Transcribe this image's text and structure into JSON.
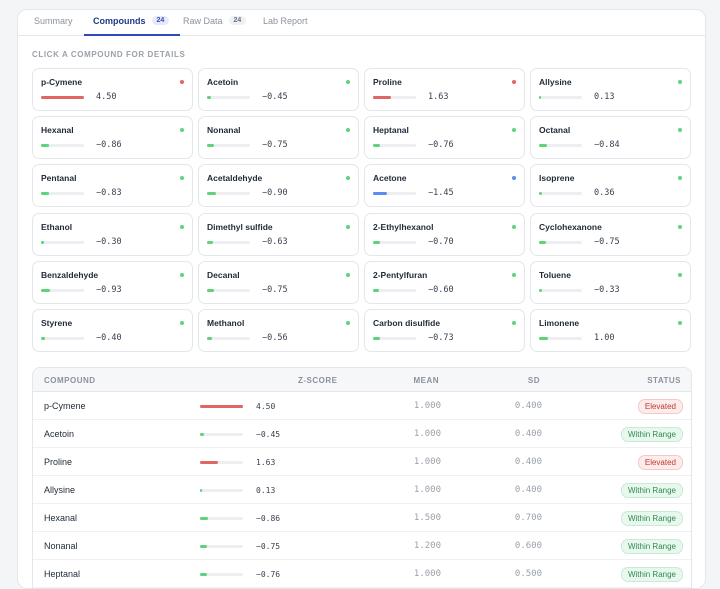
{
  "tabs": [
    {
      "label": "Summary",
      "count": null
    },
    {
      "label": "Compounds",
      "count": "24"
    },
    {
      "label": "Raw Data",
      "count": "24"
    },
    {
      "label": "Lab Report",
      "count": null
    }
  ],
  "section_label": "CLICK A COMPOUND FOR DETAILS",
  "colors": {
    "high": "#e06666",
    "normal": "#5ed37a",
    "low": "#5b8def"
  },
  "compounds": [
    {
      "name": "p-Cymene",
      "z": "4.50",
      "level": "high",
      "fill": 1.0
    },
    {
      "name": "Acetoin",
      "z": "−0.45",
      "level": "normal",
      "fill": 0.1
    },
    {
      "name": "Proline",
      "z": "1.63",
      "level": "high",
      "fill": 0.42
    },
    {
      "name": "Allysine",
      "z": "0.13",
      "level": "normal",
      "fill": 0.03
    },
    {
      "name": "Hexanal",
      "z": "−0.86",
      "level": "normal",
      "fill": 0.19
    },
    {
      "name": "Nonanal",
      "z": "−0.75",
      "level": "normal",
      "fill": 0.17
    },
    {
      "name": "Heptanal",
      "z": "−0.76",
      "level": "normal",
      "fill": 0.17
    },
    {
      "name": "Octanal",
      "z": "−0.84",
      "level": "normal",
      "fill": 0.19
    },
    {
      "name": "Pentanal",
      "z": "−0.83",
      "level": "normal",
      "fill": 0.19
    },
    {
      "name": "Acetaldehyde",
      "z": "−0.90",
      "level": "normal",
      "fill": 0.2
    },
    {
      "name": "Acetone",
      "z": "−1.45",
      "level": "low",
      "fill": 0.32
    },
    {
      "name": "Isoprene",
      "z": "0.36",
      "level": "normal",
      "fill": 0.08
    },
    {
      "name": "Ethanol",
      "z": "−0.30",
      "level": "normal",
      "fill": 0.07
    },
    {
      "name": "Dimethyl sulfide",
      "z": "−0.63",
      "level": "normal",
      "fill": 0.14
    },
    {
      "name": "2-Ethylhexanol",
      "z": "−0.70",
      "level": "normal",
      "fill": 0.16
    },
    {
      "name": "Cyclohexanone",
      "z": "−0.75",
      "level": "normal",
      "fill": 0.17
    },
    {
      "name": "Benzaldehyde",
      "z": "−0.93",
      "level": "normal",
      "fill": 0.21
    },
    {
      "name": "Decanal",
      "z": "−0.75",
      "level": "normal",
      "fill": 0.17
    },
    {
      "name": "2-Pentylfuran",
      "z": "−0.60",
      "level": "normal",
      "fill": 0.13
    },
    {
      "name": "Toluene",
      "z": "−0.33",
      "level": "normal",
      "fill": 0.07
    },
    {
      "name": "Styrene",
      "z": "−0.40",
      "level": "normal",
      "fill": 0.09
    },
    {
      "name": "Methanol",
      "z": "−0.56",
      "level": "normal",
      "fill": 0.12
    },
    {
      "name": "Carbon disulfide",
      "z": "−0.73",
      "level": "normal",
      "fill": 0.16
    },
    {
      "name": "Limonene",
      "z": "1.00",
      "level": "normal",
      "fill": 0.22
    }
  ],
  "table": {
    "headers": [
      "COMPOUND",
      "Z-SCORE",
      "MEAN",
      "SD",
      "STATUS"
    ],
    "rows": [
      {
        "name": "p-Cymene",
        "z": "4.50",
        "level": "high",
        "fill": 1.0,
        "mean": "1.000",
        "sd": "0.400",
        "status": "Elevated",
        "status_kind": "elevated"
      },
      {
        "name": "Acetoin",
        "z": "−0.45",
        "level": "normal",
        "fill": 0.1,
        "mean": "1.000",
        "sd": "0.400",
        "status": "Within Range",
        "status_kind": "normal"
      },
      {
        "name": "Proline",
        "z": "1.63",
        "level": "high",
        "fill": 0.42,
        "mean": "1.000",
        "sd": "0.400",
        "status": "Elevated",
        "status_kind": "elevated"
      },
      {
        "name": "Allysine",
        "z": "0.13",
        "level": "normal",
        "fill": 0.03,
        "mean": "1.000",
        "sd": "0.400",
        "status": "Within Range",
        "status_kind": "normal"
      },
      {
        "name": "Hexanal",
        "z": "−0.86",
        "level": "normal",
        "fill": 0.19,
        "mean": "1.500",
        "sd": "0.700",
        "status": "Within Range",
        "status_kind": "normal"
      },
      {
        "name": "Nonanal",
        "z": "−0.75",
        "level": "normal",
        "fill": 0.17,
        "mean": "1.200",
        "sd": "0.600",
        "status": "Within Range",
        "status_kind": "normal"
      },
      {
        "name": "Heptanal",
        "z": "−0.76",
        "level": "normal",
        "fill": 0.17,
        "mean": "1.000",
        "sd": "0.500",
        "status": "Within Range",
        "status_kind": "normal"
      }
    ]
  }
}
